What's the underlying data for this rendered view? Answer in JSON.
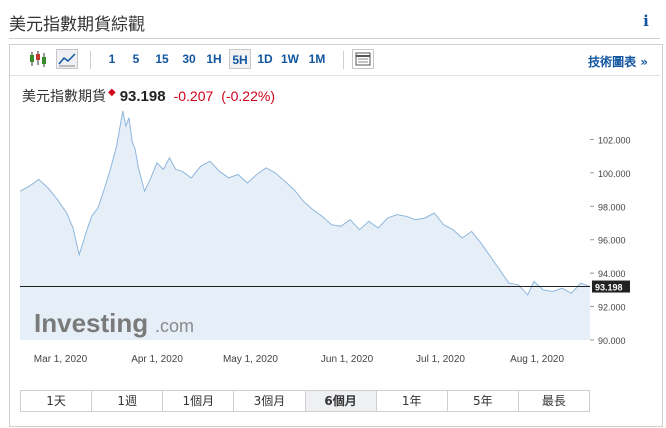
{
  "page_title": "美元指數期貨綜觀",
  "info_icon": "info-icon",
  "toolbar": {
    "icons": [
      "candlestick-icon",
      "line-chart-icon",
      "table-icon"
    ],
    "timeframes": [
      "1",
      "5",
      "15",
      "30",
      "1H",
      "5H",
      "1D",
      "1W",
      "1M"
    ],
    "selected_timeframe": "5H",
    "technical_link": "技術圖表 »"
  },
  "quote": {
    "name": "美元指數期貨",
    "price": "93.198",
    "change": "-0.207",
    "change_pct": "(-0.22%)",
    "marker": "◆"
  },
  "watermark": {
    "brand": "Investing",
    "suffix": ".com"
  },
  "colors": {
    "line": "#8fb6dc",
    "fill": "#e6eff8",
    "down": "#d0021b",
    "link": "#1256a0",
    "price_tag": "#222222"
  },
  "chart_data": {
    "type": "area",
    "title": "",
    "xlabel": "",
    "ylabel": "",
    "ylim": [
      90,
      104
    ],
    "y_ticks": [
      "102.000",
      "100.000",
      "98.000",
      "96.000",
      "94.000",
      "92.000",
      "90.000"
    ],
    "y_tick_values": [
      102,
      100,
      98,
      96,
      94,
      92,
      90
    ],
    "x_ticks": [
      "Mar 1, 2020",
      "Apr 1, 2020",
      "May 1, 2020",
      "Jun 1, 2020",
      "Jul 1, 2020",
      "Aug 1, 2020"
    ],
    "x_tick_days": [
      13,
      44,
      74,
      105,
      135,
      166
    ],
    "x_range_days": [
      0,
      183
    ],
    "current_price": 93.198,
    "current_price_label": "93.198",
    "series": [
      {
        "x": [
          0,
          3,
          6,
          9,
          12,
          15,
          17,
          19,
          21,
          23,
          25,
          27,
          29,
          31,
          33,
          34,
          35,
          36,
          37,
          38,
          39,
          40,
          42,
          44,
          46,
          48,
          50,
          52,
          55,
          58,
          61,
          64,
          67,
          70,
          73,
          76,
          79,
          82,
          85,
          88,
          91,
          94,
          97,
          100,
          103,
          106,
          109,
          112,
          115,
          118,
          121,
          124,
          127,
          130,
          133,
          136,
          139,
          142,
          145,
          148,
          151,
          154,
          157,
          160,
          163,
          165,
          168,
          171,
          174,
          177,
          180,
          183
        ],
        "y": [
          98.9,
          99.2,
          99.6,
          99.1,
          98.4,
          97.6,
          96.7,
          95.1,
          96.3,
          97.4,
          97.9,
          99.0,
          100.2,
          101.6,
          103.7,
          102.8,
          103.3,
          101.9,
          101.4,
          100.3,
          99.6,
          98.9,
          99.7,
          100.6,
          100.2,
          100.9,
          100.2,
          100.1,
          99.7,
          100.4,
          100.7,
          100.1,
          99.7,
          99.9,
          99.4,
          99.9,
          100.3,
          100.0,
          99.5,
          99.0,
          98.3,
          97.8,
          97.4,
          96.9,
          96.8,
          97.2,
          96.6,
          97.1,
          96.7,
          97.3,
          97.5,
          97.4,
          97.2,
          97.3,
          97.6,
          96.9,
          96.6,
          96.1,
          96.5,
          95.8,
          95.0,
          94.2,
          93.4,
          93.3,
          92.7,
          93.5,
          93.0,
          92.9,
          93.1,
          92.8,
          93.4,
          93.2
        ]
      }
    ]
  },
  "period_tabs": [
    "1天",
    "1週",
    "1個月",
    "3個月",
    "6個月",
    "1年",
    "5年",
    "最長"
  ],
  "selected_period": "6個月"
}
